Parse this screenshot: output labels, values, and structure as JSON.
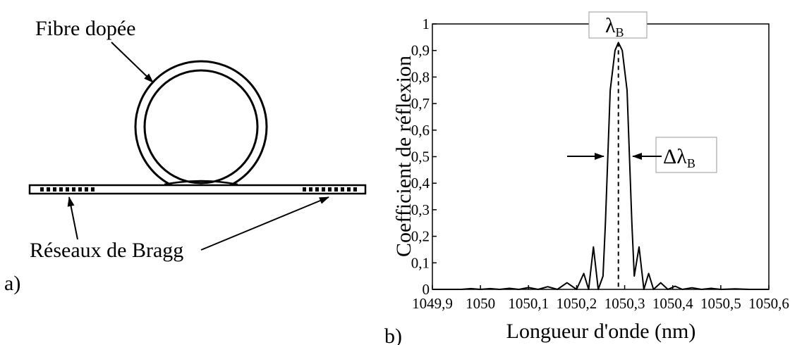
{
  "panel_a": {
    "letter": "a)",
    "fiber_label": "Fibre dopée",
    "grating_label": "Réseaux de Bragg"
  },
  "panel_b": {
    "letter": "b)",
    "peak_label_main": "λ",
    "peak_label_sub": "B",
    "width_label_main": "Δλ",
    "width_label_sub": "B"
  },
  "chart_data": {
    "type": "line",
    "xlabel": "Longueur d'onde (nm)",
    "ylabel": "Coefficient de réflexion",
    "xlim": [
      1049.9,
      1050.6
    ],
    "ylim": [
      0,
      1
    ],
    "xticks": [
      "1049,9",
      "1050",
      "1050,1",
      "1050,2",
      "1050,3",
      "1050,4",
      "1050,5",
      "1050,6"
    ],
    "yticks": [
      "0",
      "0,1",
      "0,2",
      "0,3",
      "0,4",
      "0,5",
      "0,6",
      "0,7",
      "0,8",
      "0,9",
      "1"
    ],
    "series": [
      {
        "x": [
          1049.9,
          1049.96,
          1049.98,
          1050.0,
          1050.02,
          1050.04,
          1050.06,
          1050.08,
          1050.1,
          1050.12,
          1050.14,
          1050.16,
          1050.18,
          1050.2,
          1050.215,
          1050.225,
          1050.235,
          1050.245,
          1050.255,
          1050.26,
          1050.265,
          1050.27,
          1050.28,
          1050.287,
          1050.295,
          1050.305,
          1050.31,
          1050.315,
          1050.32,
          1050.33,
          1050.34,
          1050.35,
          1050.36,
          1050.375,
          1050.39,
          1050.405,
          1050.42,
          1050.44,
          1050.46,
          1050.48,
          1050.5,
          1050.53,
          1050.56,
          1050.6
        ],
        "y": [
          0.0,
          0.0,
          0.003,
          0.0,
          0.003,
          0.0,
          0.004,
          0.0,
          0.007,
          0.0,
          0.01,
          0.0,
          0.025,
          0.0,
          0.06,
          0.0,
          0.16,
          0.0,
          0.05,
          0.25,
          0.5,
          0.75,
          0.9,
          0.93,
          0.9,
          0.75,
          0.5,
          0.25,
          0.05,
          0.16,
          0.0,
          0.06,
          0.0,
          0.025,
          0.0,
          0.012,
          0.0,
          0.006,
          0.0,
          0.004,
          0.0,
          0.002,
          0.0,
          0.0
        ]
      }
    ],
    "marker_peak_x": 1050.287,
    "marker_peak_y": 0.93,
    "fwhm_level": 0.5,
    "fwhm_x": [
      1050.26,
      1050.315
    ]
  }
}
